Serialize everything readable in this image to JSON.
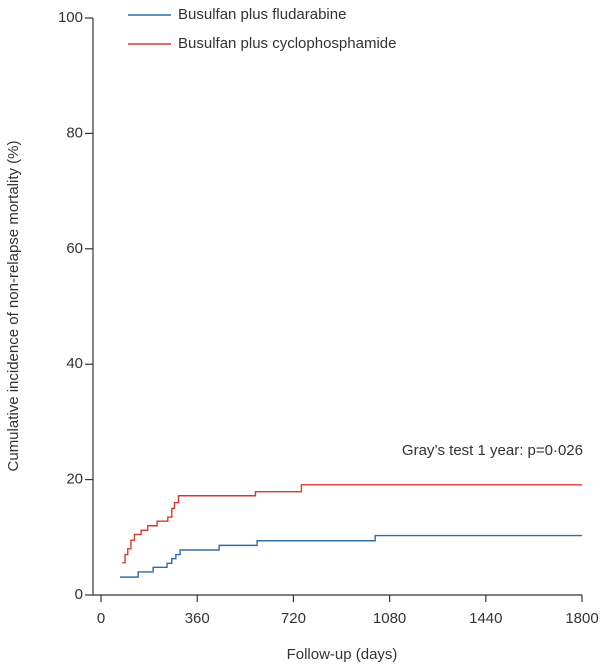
{
  "chart_data": {
    "type": "line",
    "step": true,
    "x_label": "Follow-up (days)",
    "y_label": "Cumulative incidence of non-relapse mortality (%)",
    "annotation": "Gray’s test 1 year: p=0·026",
    "xlim": [
      -30,
      1800
    ],
    "xticks": [
      0,
      360,
      720,
      1080,
      1440,
      1800
    ],
    "ylim": [
      0,
      100
    ],
    "yticks": [
      0,
      20,
      40,
      60,
      80,
      100
    ],
    "grid": false,
    "legend": "top-left",
    "series": [
      {
        "name": "Busulfan plus fludarabine",
        "color": "#2e6da4",
        "x": [
          71,
          139,
          139,
          195,
          195,
          247,
          247,
          265,
          265,
          280,
          280,
          296,
          296,
          442,
          442,
          584,
          584,
          1026,
          1026,
          1800
        ],
        "values": [
          3.1,
          3.1,
          4.0,
          4.0,
          4.8,
          4.8,
          5.5,
          5.5,
          6.3,
          6.3,
          7.0,
          7.0,
          7.8,
          7.8,
          8.6,
          8.6,
          9.4,
          9.4,
          10.3,
          10.3
        ]
      },
      {
        "name": "Busulfan plus cyclophosphamide",
        "color": "#d9382e",
        "x": [
          79,
          90,
          90,
          100,
          100,
          112,
          112,
          125,
          125,
          150,
          150,
          175,
          175,
          210,
          210,
          250,
          250,
          265,
          265,
          275,
          275,
          290,
          290,
          578,
          578,
          750,
          750,
          1800
        ],
        "values": [
          5.6,
          5.6,
          7.0,
          7.0,
          8.0,
          8.0,
          9.5,
          9.5,
          10.5,
          10.5,
          11.2,
          11.2,
          12.0,
          12.0,
          12.8,
          12.8,
          13.5,
          13.5,
          15.0,
          15.0,
          16.0,
          16.0,
          17.2,
          17.2,
          17.9,
          17.9,
          19.1,
          19.1
        ]
      }
    ]
  }
}
